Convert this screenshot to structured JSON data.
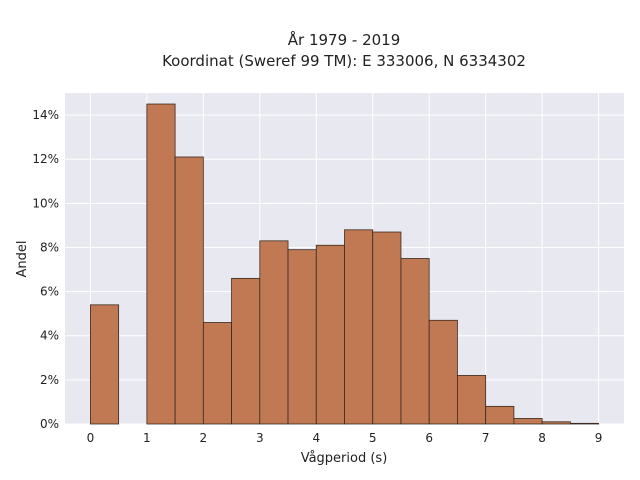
{
  "chart_data": {
    "type": "bar",
    "title_lines": [
      "År 1979 - 2019",
      "Koordinat (Sweref 99 TM): E 333006, N 6334302"
    ],
    "xlabel": "Vågperiod (s)",
    "ylabel": "Andel",
    "xlim": [
      -0.45,
      9.45
    ],
    "ylim": [
      0,
      15
    ],
    "x_ticks": [
      0,
      1,
      2,
      3,
      4,
      5,
      6,
      7,
      8,
      9
    ],
    "x_tick_labels": [
      "0",
      "1",
      "2",
      "3",
      "4",
      "5",
      "6",
      "7",
      "8",
      "9"
    ],
    "y_ticks": [
      0,
      2,
      4,
      6,
      8,
      10,
      12,
      14
    ],
    "y_tick_labels": [
      "0%",
      "2%",
      "4%",
      "6%",
      "8%",
      "10%",
      "12%",
      "14%"
    ],
    "grid": true,
    "bin_width": 0.5,
    "bins": [
      {
        "start": 0.0,
        "value": 5.4
      },
      {
        "start": 1.0,
        "value": 14.5
      },
      {
        "start": 1.5,
        "value": 12.1
      },
      {
        "start": 2.0,
        "value": 4.6
      },
      {
        "start": 2.5,
        "value": 6.6
      },
      {
        "start": 3.0,
        "value": 8.3
      },
      {
        "start": 3.5,
        "value": 7.9
      },
      {
        "start": 4.0,
        "value": 8.1
      },
      {
        "start": 4.5,
        "value": 8.8
      },
      {
        "start": 5.0,
        "value": 8.7
      },
      {
        "start": 5.5,
        "value": 7.5
      },
      {
        "start": 6.0,
        "value": 4.7
      },
      {
        "start": 6.5,
        "value": 2.2
      },
      {
        "start": 7.0,
        "value": 0.8
      },
      {
        "start": 7.5,
        "value": 0.25
      },
      {
        "start": 8.0,
        "value": 0.1
      },
      {
        "start": 8.5,
        "value": 0.03
      }
    ],
    "colors": {
      "bar_fill": "#c07953",
      "bar_edge": "#3a2a20",
      "plot_bg": "#e8e8f1",
      "grid": "#ffffff"
    }
  }
}
